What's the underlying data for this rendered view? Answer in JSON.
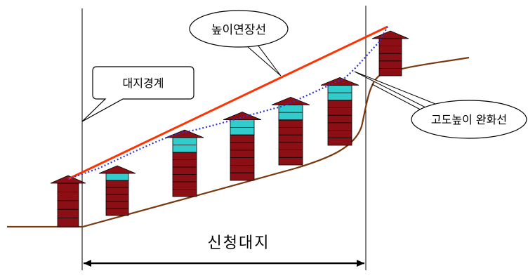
{
  "labels": {
    "height_extension_line": "높이연장선",
    "site_boundary": "대지경계",
    "altitude_height_relief_line": "고도높이 완화선",
    "applied_site": "신청대지"
  },
  "colors": {
    "extension_line": "#ff3300",
    "relief_line": "#3333cc",
    "ground": "#7a3a10",
    "building_body": "#8b0f14",
    "building_cyan": "#33cccc",
    "building_edge": "#000000"
  },
  "buildings": [
    {
      "name": "building-1",
      "cyan_floors": 0,
      "brick_floors": 5
    },
    {
      "name": "building-2",
      "cyan_floors": 1,
      "brick_floors": 5
    },
    {
      "name": "building-3",
      "cyan_floors": 2,
      "brick_floors": 6
    },
    {
      "name": "building-4",
      "cyan_floors": 2,
      "brick_floors": 6
    },
    {
      "name": "building-5",
      "cyan_floors": 2,
      "brick_floors": 6
    },
    {
      "name": "building-6",
      "cyan_floors": 2,
      "brick_floors": 6
    },
    {
      "name": "building-7",
      "cyan_floors": 0,
      "brick_floors": 5
    }
  ]
}
